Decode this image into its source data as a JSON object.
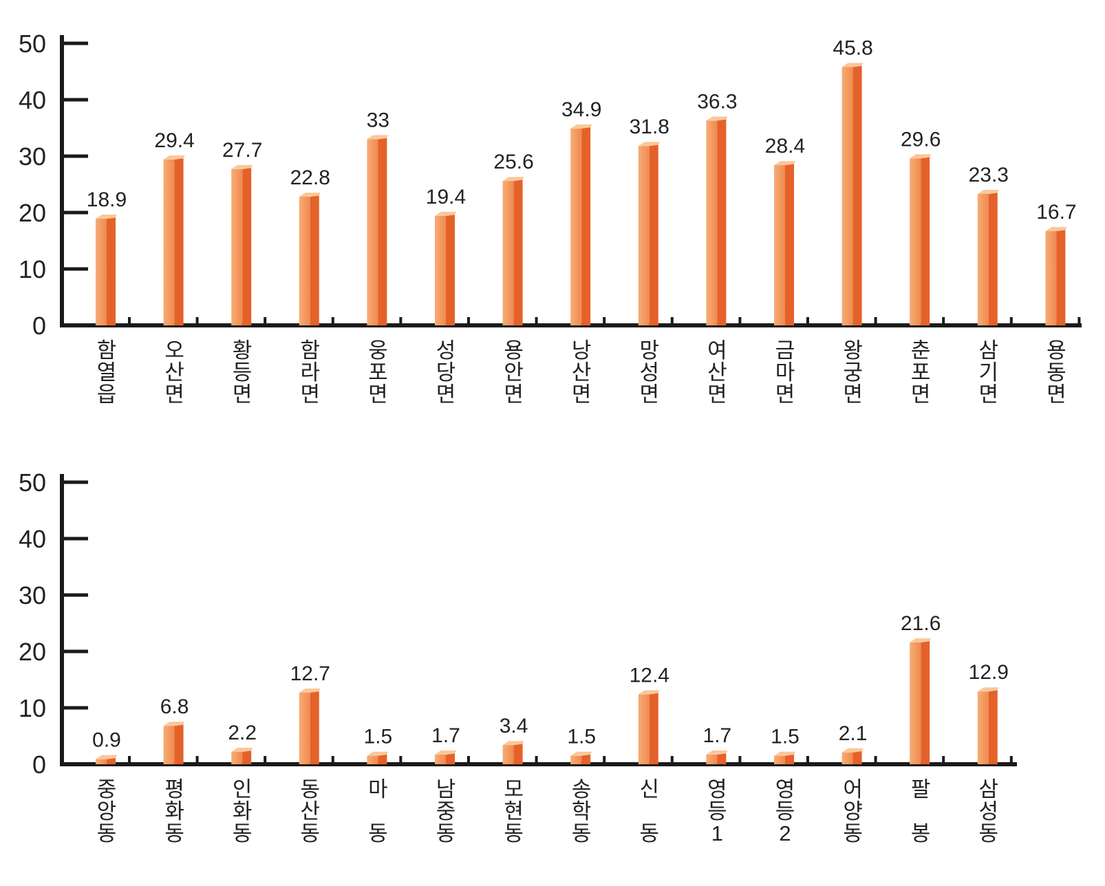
{
  "colors": {
    "bar_front_light": "#f7ad74",
    "bar_front_dark": "#ef7f45",
    "bar_side": "#e4622a",
    "bar_top": "#fbc79a",
    "axis": "#1a1a1a",
    "text": "#222222"
  },
  "chart_data": [
    {
      "type": "bar",
      "title": "",
      "xlabel": "",
      "ylabel": "",
      "ylim": [
        0,
        50
      ],
      "yticks": [
        0,
        10,
        20,
        30,
        40,
        50
      ],
      "grid": false,
      "legend": "none",
      "categories": [
        "함열읍",
        "오산면",
        "황등면",
        "함라면",
        "웅포면",
        "성당면",
        "용안면",
        "낭산면",
        "망성면",
        "여산면",
        "금마면",
        "왕궁면",
        "춘포면",
        "삼기면",
        "용동면"
      ],
      "values": [
        18.9,
        29.4,
        27.7,
        22.8,
        33,
        19.4,
        25.6,
        34.9,
        31.8,
        36.3,
        28.4,
        45.8,
        29.6,
        23.3,
        16.7
      ],
      "value_labels": [
        "18.9",
        "29.4",
        "27.7",
        "22.8",
        "33",
        "19.4",
        "25.6",
        "34.9",
        "31.8",
        "36.3",
        "28.4",
        "45.8",
        "29.6",
        "23.3",
        "16.7"
      ]
    },
    {
      "type": "bar",
      "title": "",
      "xlabel": "",
      "ylabel": "",
      "ylim": [
        0,
        50
      ],
      "yticks": [
        0,
        10,
        20,
        30,
        40,
        50
      ],
      "grid": false,
      "legend": "none",
      "categories": [
        "중앙동",
        "평화동",
        "인화동",
        "동산동",
        "마 동",
        "남중동",
        "모현동",
        "송학동",
        "신 동",
        "영등1",
        "영등2",
        "어양동",
        "팔 봉",
        "삼성동"
      ],
      "values": [
        0.9,
        6.8,
        2.2,
        12.7,
        1.5,
        1.7,
        3.4,
        1.5,
        12.4,
        1.7,
        1.5,
        2.1,
        21.6,
        12.9
      ],
      "value_labels": [
        "0.9",
        "6.8",
        "2.2",
        "12.7",
        "1.5",
        "1.7",
        "3.4",
        "1.5",
        "12.4",
        "1.7",
        "1.5",
        "2.1",
        "21.6",
        "12.9"
      ]
    }
  ]
}
